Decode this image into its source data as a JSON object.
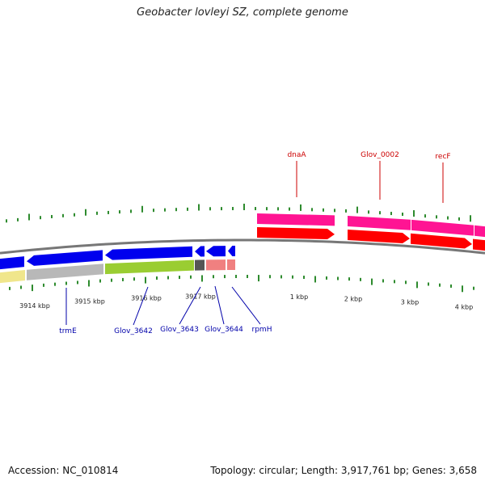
{
  "title": "Geobacter lovleyi SZ, complete genome",
  "footer": {
    "accession": "Accession: NC_010814",
    "stats": "Topology: circular; Length: 3,917,761 bp; Genes: 3,658"
  },
  "colors": {
    "backbone": "#777777",
    "ticks": "#2e8b2e",
    "top_label": "#cc0000",
    "bottom_label": "#0000aa",
    "pink": "#ff1493",
    "red": "#ff0000",
    "blue": "#0000ee",
    "khaki": "#f0e68c",
    "silver": "#b8b8b8",
    "lime": "#9acd32",
    "darkgray": "#555555",
    "salmon": "#f08080"
  },
  "kbp_labels": [
    "3914 kbp",
    "3915 kbp",
    "3916 kbp",
    "3917 kbp",
    "1 kbp",
    "2 kbp",
    "3 kbp",
    "4 kbp"
  ],
  "top_genes": [
    "dnaA",
    "Glov_0002",
    "recF"
  ],
  "bottom_genes": [
    "trmE",
    "Glov_3642",
    "Glov_3643",
    "Glov_3644",
    "rpmH"
  ]
}
